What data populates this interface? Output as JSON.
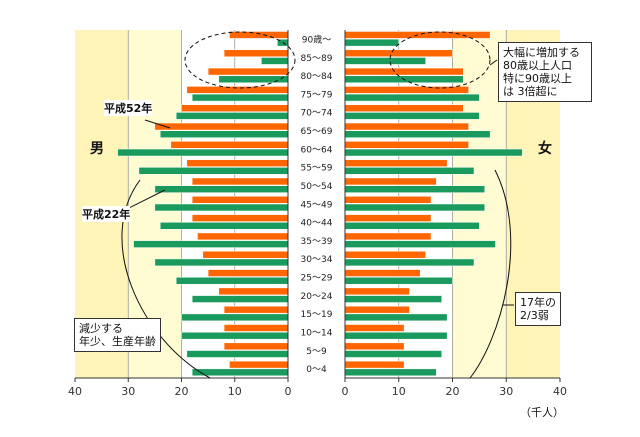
{
  "chart_data": {
    "type": "bar",
    "subtype": "population-pyramid",
    "unit_label": "（千人）",
    "categories": [
      "90歳～",
      "85～89",
      "80～84",
      "75～79",
      "70～74",
      "65～69",
      "60～64",
      "55～59",
      "50～54",
      "45～49",
      "40～44",
      "35～39",
      "30～34",
      "25～29",
      "20～24",
      "15～19",
      "10～14",
      "5～9",
      "0～4"
    ],
    "left_label": "男",
    "right_label": "女",
    "series": [
      {
        "name": "平成52年",
        "color": "#ff6600",
        "male": [
          11,
          12,
          15,
          19,
          20,
          25,
          22,
          19,
          18,
          18,
          18,
          17,
          16,
          15,
          13,
          12,
          12,
          12,
          11
        ],
        "female": [
          27,
          20,
          22,
          23,
          22,
          23,
          23,
          19,
          17,
          16,
          16,
          16,
          15,
          14,
          12,
          12,
          11,
          11,
          11
        ]
      },
      {
        "name": "平成22年",
        "color": "#1a9a5c",
        "male": [
          2,
          5,
          13,
          18,
          21,
          24,
          32,
          28,
          25,
          25,
          24,
          29,
          25,
          21,
          18,
          20,
          20,
          19,
          18
        ],
        "female": [
          10,
          15,
          22,
          25,
          25,
          27,
          33,
          24,
          26,
          26,
          25,
          28,
          24,
          20,
          18,
          19,
          19,
          18,
          17
        ]
      }
    ],
    "left_axis_ticks": [
      "40",
      "30",
      "20",
      "10",
      "0"
    ],
    "right_axis_ticks": [
      "0",
      "10",
      "20",
      "30",
      "40"
    ],
    "xlim": [
      0,
      40
    ],
    "annotations": {
      "top_right": "大幅に増加する\n80歳以上人口\n特に90歳以上\nは 3倍超に",
      "bottom_right": "17年の\n2/3弱",
      "bottom_left": "減少する\n年少、生産年齢",
      "label_2040": "平成52年",
      "label_2010": "平成22年"
    }
  }
}
